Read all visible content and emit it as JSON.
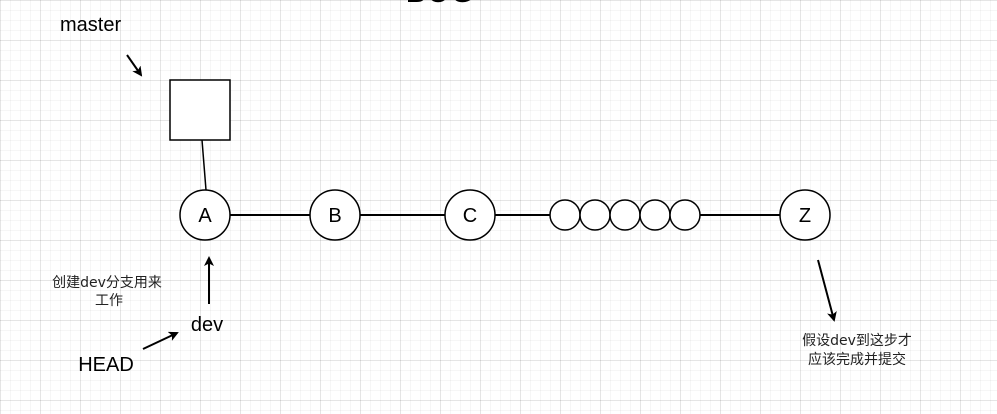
{
  "diagram": {
    "title": "BUG",
    "labels": {
      "master": "master",
      "dev": "dev",
      "head": "HEAD"
    },
    "nodes": {
      "a": "A",
      "b": "B",
      "c": "C",
      "z": "Z"
    },
    "notes": {
      "dev_create_line1": "创建dev分支用来",
      "dev_create_line2": "工作",
      "assume_line1": "假设dev到这步才",
      "assume_line2": "应该完成并提交"
    },
    "colors": {
      "stroke": "#000000",
      "fill": "#ffffff",
      "background": "#ffffff"
    }
  }
}
